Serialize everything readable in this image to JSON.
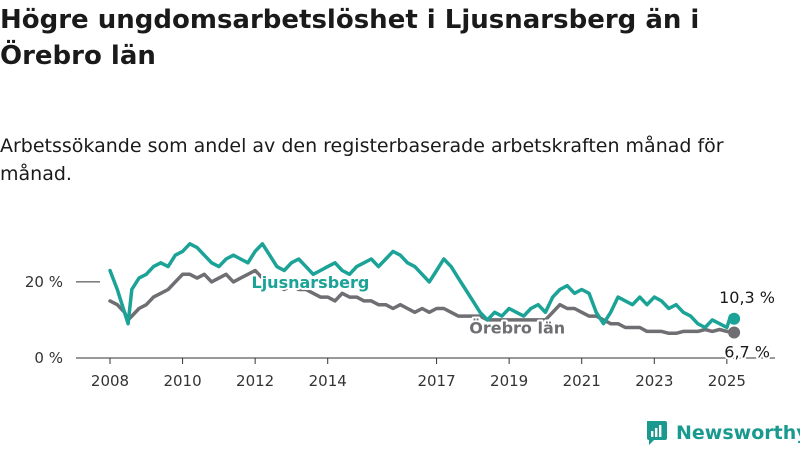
{
  "title": "Högre ungdomsarbetslöshet i Ljusnarsberg än i Örebro län",
  "subtitle": "Arbetssökande som andel av den registerbaserade arbetskraften månad för månad.",
  "brand": {
    "name": "Newsworthy",
    "color": "#1a9a8f"
  },
  "chart_data": {
    "type": "line",
    "title": "Högre ungdomsarbetslöshet i Ljusnarsberg än i Örebro län",
    "subtitle": "Arbetssökande som andel av den registerbaserade arbetskraften månad för månad.",
    "xlabel": "",
    "ylabel": "",
    "xlim": [
      2008.0,
      2025.5
    ],
    "ylim": [
      0,
      31
    ],
    "x_ticks": [
      2008,
      2010,
      2012,
      2014,
      2017,
      2019,
      2021,
      2023,
      2025
    ],
    "x_tick_labels": [
      "2008",
      "2010",
      "2012",
      "2014",
      "2017",
      "2019",
      "2021",
      "2023",
      "2025"
    ],
    "y_ticks": [
      0,
      20
    ],
    "y_tick_labels": [
      "0 %",
      "20 %"
    ],
    "grid": false,
    "legend": "direct labels on lines",
    "series": [
      {
        "name": "Ljusnarsberg",
        "color": "#1aa396",
        "points": [
          [
            2008.0,
            23
          ],
          [
            2008.2,
            18
          ],
          [
            2008.4,
            12
          ],
          [
            2008.5,
            9
          ],
          [
            2008.6,
            18
          ],
          [
            2008.8,
            21
          ],
          [
            2009.0,
            22
          ],
          [
            2009.2,
            24
          ],
          [
            2009.4,
            25
          ],
          [
            2009.6,
            24
          ],
          [
            2009.8,
            27
          ],
          [
            2010.0,
            28
          ],
          [
            2010.2,
            30
          ],
          [
            2010.4,
            29
          ],
          [
            2010.6,
            27
          ],
          [
            2010.8,
            25
          ],
          [
            2011.0,
            24
          ],
          [
            2011.2,
            26
          ],
          [
            2011.4,
            27
          ],
          [
            2011.6,
            26
          ],
          [
            2011.8,
            25
          ],
          [
            2012.0,
            28
          ],
          [
            2012.2,
            30
          ],
          [
            2012.4,
            27
          ],
          [
            2012.6,
            24
          ],
          [
            2012.8,
            23
          ],
          [
            2013.0,
            25
          ],
          [
            2013.2,
            26
          ],
          [
            2013.4,
            24
          ],
          [
            2013.6,
            22
          ],
          [
            2013.8,
            23
          ],
          [
            2014.0,
            24
          ],
          [
            2014.2,
            25
          ],
          [
            2014.4,
            23
          ],
          [
            2014.6,
            22
          ],
          [
            2014.8,
            24
          ],
          [
            2015.0,
            25
          ],
          [
            2015.2,
            26
          ],
          [
            2015.4,
            24
          ],
          [
            2015.6,
            26
          ],
          [
            2015.8,
            28
          ],
          [
            2016.0,
            27
          ],
          [
            2016.2,
            25
          ],
          [
            2016.4,
            24
          ],
          [
            2016.6,
            22
          ],
          [
            2016.8,
            20
          ],
          [
            2017.0,
            23
          ],
          [
            2017.2,
            26
          ],
          [
            2017.4,
            24
          ],
          [
            2017.6,
            21
          ],
          [
            2017.8,
            18
          ],
          [
            2018.0,
            15
          ],
          [
            2018.2,
            12
          ],
          [
            2018.4,
            10
          ],
          [
            2018.6,
            12
          ],
          [
            2018.8,
            11
          ],
          [
            2019.0,
            13
          ],
          [
            2019.2,
            12
          ],
          [
            2019.4,
            11
          ],
          [
            2019.6,
            13
          ],
          [
            2019.8,
            14
          ],
          [
            2020.0,
            12
          ],
          [
            2020.2,
            16
          ],
          [
            2020.4,
            18
          ],
          [
            2020.6,
            19
          ],
          [
            2020.8,
            17
          ],
          [
            2021.0,
            18
          ],
          [
            2021.2,
            17
          ],
          [
            2021.4,
            12
          ],
          [
            2021.6,
            9
          ],
          [
            2021.8,
            12
          ],
          [
            2022.0,
            16
          ],
          [
            2022.2,
            15
          ],
          [
            2022.4,
            14
          ],
          [
            2022.6,
            16
          ],
          [
            2022.8,
            14
          ],
          [
            2023.0,
            16
          ],
          [
            2023.2,
            15
          ],
          [
            2023.4,
            13
          ],
          [
            2023.6,
            14
          ],
          [
            2023.8,
            12
          ],
          [
            2024.0,
            11
          ],
          [
            2024.2,
            9
          ],
          [
            2024.4,
            8
          ],
          [
            2024.6,
            10
          ],
          [
            2024.8,
            9
          ],
          [
            2025.0,
            8
          ],
          [
            2025.1,
            11
          ],
          [
            2025.2,
            10.3
          ]
        ]
      },
      {
        "name": "Örebro län",
        "color": "#6e6e73",
        "points": [
          [
            2008.0,
            15
          ],
          [
            2008.2,
            14
          ],
          [
            2008.4,
            12
          ],
          [
            2008.5,
            10
          ],
          [
            2008.6,
            11
          ],
          [
            2008.8,
            13
          ],
          [
            2009.0,
            14
          ],
          [
            2009.2,
            16
          ],
          [
            2009.4,
            17
          ],
          [
            2009.6,
            18
          ],
          [
            2009.8,
            20
          ],
          [
            2010.0,
            22
          ],
          [
            2010.2,
            22
          ],
          [
            2010.4,
            21
          ],
          [
            2010.6,
            22
          ],
          [
            2010.8,
            20
          ],
          [
            2011.0,
            21
          ],
          [
            2011.2,
            22
          ],
          [
            2011.4,
            20
          ],
          [
            2011.6,
            21
          ],
          [
            2011.8,
            22
          ],
          [
            2012.0,
            23
          ],
          [
            2012.2,
            21
          ],
          [
            2012.4,
            20
          ],
          [
            2012.6,
            19
          ],
          [
            2012.8,
            18
          ],
          [
            2013.0,
            19
          ],
          [
            2013.2,
            18
          ],
          [
            2013.4,
            18
          ],
          [
            2013.6,
            17
          ],
          [
            2013.8,
            16
          ],
          [
            2014.0,
            16
          ],
          [
            2014.2,
            15
          ],
          [
            2014.4,
            17
          ],
          [
            2014.6,
            16
          ],
          [
            2014.8,
            16
          ],
          [
            2015.0,
            15
          ],
          [
            2015.2,
            15
          ],
          [
            2015.4,
            14
          ],
          [
            2015.6,
            14
          ],
          [
            2015.8,
            13
          ],
          [
            2016.0,
            14
          ],
          [
            2016.2,
            13
          ],
          [
            2016.4,
            12
          ],
          [
            2016.6,
            13
          ],
          [
            2016.8,
            12
          ],
          [
            2017.0,
            13
          ],
          [
            2017.2,
            13
          ],
          [
            2017.4,
            12
          ],
          [
            2017.6,
            11
          ],
          [
            2017.8,
            11
          ],
          [
            2018.0,
            11
          ],
          [
            2018.2,
            11
          ],
          [
            2018.4,
            10
          ],
          [
            2018.6,
            10
          ],
          [
            2018.8,
            10
          ],
          [
            2019.0,
            10
          ],
          [
            2019.2,
            10
          ],
          [
            2019.4,
            10
          ],
          [
            2019.6,
            10
          ],
          [
            2019.8,
            10
          ],
          [
            2020.0,
            10
          ],
          [
            2020.2,
            12
          ],
          [
            2020.4,
            14
          ],
          [
            2020.6,
            13
          ],
          [
            2020.8,
            13
          ],
          [
            2021.0,
            12
          ],
          [
            2021.2,
            11
          ],
          [
            2021.4,
            11
          ],
          [
            2021.6,
            10
          ],
          [
            2021.8,
            9
          ],
          [
            2022.0,
            9
          ],
          [
            2022.2,
            8
          ],
          [
            2022.4,
            8
          ],
          [
            2022.6,
            8
          ],
          [
            2022.8,
            7
          ],
          [
            2023.0,
            7
          ],
          [
            2023.2,
            7
          ],
          [
            2023.4,
            6.5
          ],
          [
            2023.6,
            6.5
          ],
          [
            2023.8,
            7
          ],
          [
            2024.0,
            7
          ],
          [
            2024.2,
            7
          ],
          [
            2024.4,
            7.5
          ],
          [
            2024.6,
            7
          ],
          [
            2024.8,
            7.5
          ],
          [
            2025.0,
            7
          ],
          [
            2025.1,
            6.8
          ],
          [
            2025.2,
            6.7
          ]
        ]
      }
    ],
    "annotations": [
      {
        "series": "Ljusnarsberg",
        "text": "10,3 %"
      },
      {
        "series": "Örebro län",
        "text": "6,7 %"
      }
    ]
  }
}
